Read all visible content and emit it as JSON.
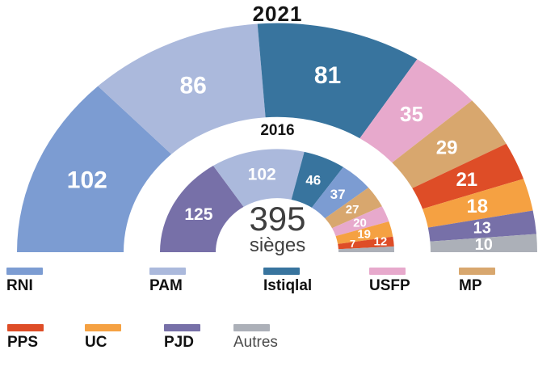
{
  "chart_data": {
    "type": "half-donut",
    "title": "2021",
    "total": 395,
    "center": {
      "value": "395",
      "unit": "sièges"
    },
    "colors": {
      "rni": "#7C9CD2",
      "pam": "#ABB9DC",
      "istiqlal": "#38749E",
      "usfp": "#E7A9CC",
      "mp": "#D8A76E",
      "pps": "#DE4D27",
      "uc": "#F5A142",
      "pjd": "#7770A8",
      "autres": "#ACB0B8"
    },
    "rings": [
      {
        "id": "2021",
        "label": "2021",
        "position": "outer",
        "segments": [
          {
            "party": "rni",
            "value": 102
          },
          {
            "party": "pam",
            "value": 86
          },
          {
            "party": "istiqlal",
            "value": 81
          },
          {
            "party": "usfp",
            "value": 35
          },
          {
            "party": "mp",
            "value": 29
          },
          {
            "party": "pps",
            "value": 21
          },
          {
            "party": "uc",
            "value": 18
          },
          {
            "party": "pjd",
            "value": 13
          },
          {
            "party": "autres",
            "value": 10
          }
        ]
      },
      {
        "id": "2016",
        "label": "2016",
        "position": "inner",
        "segments": [
          {
            "party": "pjd",
            "value": 125
          },
          {
            "party": "pam",
            "value": 102
          },
          {
            "party": "istiqlal",
            "value": 46
          },
          {
            "party": "rni",
            "value": 37
          },
          {
            "party": "mp",
            "value": 27
          },
          {
            "party": "usfp",
            "value": 20
          },
          {
            "party": "uc",
            "value": 19
          },
          {
            "party": "pps",
            "value": 12,
            "label_offset": [
              18,
              -3
            ]
          },
          {
            "party": "autres",
            "value": 7,
            "label_offset": [
              -17,
              -8
            ]
          }
        ]
      }
    ],
    "legend": {
      "rows": [
        {
          "items": [
            {
              "party": "rni",
              "label": "RNI"
            },
            {
              "party": "pam",
              "label": "PAM"
            },
            {
              "party": "istiqlal",
              "label": "Istiqlal"
            },
            {
              "party": "usfp",
              "label": "USFP"
            },
            {
              "party": "mp",
              "label": "MP"
            }
          ]
        },
        {
          "items": [
            {
              "party": "pps",
              "label": "PPS"
            },
            {
              "party": "uc",
              "label": "UC"
            },
            {
              "party": "pjd",
              "label": "PJD"
            },
            {
              "party": "autres",
              "label": "Autres"
            }
          ]
        }
      ]
    }
  }
}
